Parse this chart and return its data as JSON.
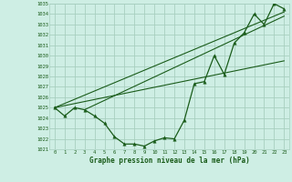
{
  "xlabel": "Graphe pression niveau de la mer (hPa)",
  "x_values": [
    0,
    1,
    2,
    3,
    4,
    5,
    6,
    7,
    8,
    9,
    10,
    11,
    12,
    13,
    14,
    15,
    16,
    17,
    18,
    19,
    20,
    21,
    22,
    23
  ],
  "y_values": [
    1025.0,
    1024.2,
    1025.0,
    1024.8,
    1024.2,
    1023.5,
    1022.2,
    1021.5,
    1021.5,
    1021.3,
    1021.8,
    1022.1,
    1022.0,
    1023.8,
    1027.3,
    1027.5,
    1030.0,
    1028.2,
    1031.2,
    1032.2,
    1034.0,
    1033.0,
    1035.0,
    1034.5
  ],
  "trend1_x": [
    0,
    23
  ],
  "trend1_y": [
    1025.0,
    1034.2
  ],
  "trend2_x": [
    0,
    23
  ],
  "trend2_y": [
    1025.0,
    1029.5
  ],
  "trend3_x": [
    3,
    23
  ],
  "trend3_y": [
    1024.8,
    1033.8
  ],
  "ylim": [
    1021,
    1035
  ],
  "xlim": [
    -0.5,
    23.5
  ],
  "bg_color": "#ceeee4",
  "grid_color": "#a8cfc0",
  "line_color": "#1a5c1a",
  "marker_color": "#1a5c1a",
  "text_color": "#1a5c1a",
  "yticks": [
    1021,
    1022,
    1023,
    1024,
    1025,
    1026,
    1027,
    1028,
    1029,
    1030,
    1031,
    1032,
    1033,
    1034,
    1035
  ],
  "xticks": [
    0,
    1,
    2,
    3,
    4,
    5,
    6,
    7,
    8,
    9,
    10,
    11,
    12,
    13,
    14,
    15,
    16,
    17,
    18,
    19,
    20,
    21,
    22,
    23
  ]
}
